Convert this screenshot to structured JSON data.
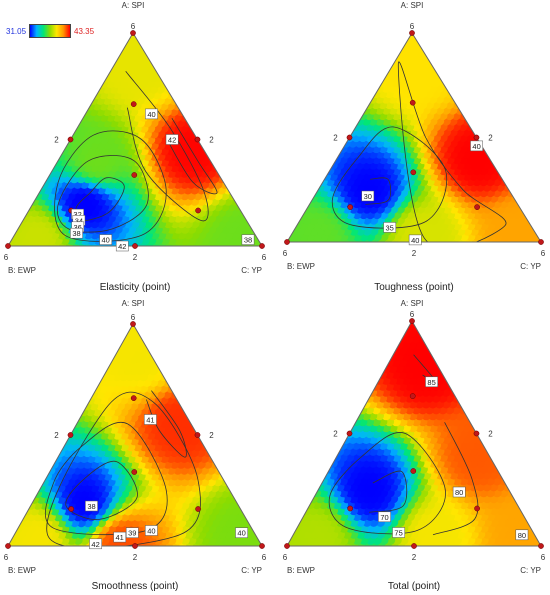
{
  "legend": {
    "min": "31.05",
    "max": "43.35"
  },
  "vertex_labels": {
    "top": "A: SPI",
    "left": "B: EWP",
    "right": "C: YP"
  },
  "tick_labels": {
    "corner": "6",
    "side": "2"
  },
  "chart_data": [
    {
      "type": "heatmap",
      "title": "Elasticity (point)",
      "components": [
        "A: SPI",
        "B: EWP",
        "C: YP"
      ],
      "range": [
        31.05,
        43.35
      ],
      "hotspots": [
        {
          "a": 0.2,
          "b": 0.6,
          "c": 0.2,
          "v": 31
        },
        {
          "a": 0.45,
          "b": 0.05,
          "c": 0.5,
          "v": 43.3
        },
        {
          "a": 0.85,
          "b": 0.05,
          "c": 0.1,
          "v": 39
        },
        {
          "a": 0.05,
          "b": 0.05,
          "c": 0.9,
          "v": 37
        },
        {
          "a": 0.05,
          "b": 0.85,
          "c": 0.1,
          "v": 38.5
        },
        {
          "a": 0.4,
          "b": 0.45,
          "c": 0.15,
          "v": 37
        }
      ],
      "contour_labels": [
        "40",
        "42",
        "32",
        "34",
        "36",
        "38",
        "40",
        "42",
        "38"
      ],
      "design_points": [
        {
          "a": 1,
          "b": 0,
          "c": 0
        },
        {
          "a": 0,
          "b": 1,
          "c": 0
        },
        {
          "a": 0,
          "b": 0,
          "c": 1
        },
        {
          "a": 0.5,
          "b": 0.5,
          "c": 0
        },
        {
          "a": 0.5,
          "b": 0,
          "c": 0.5
        },
        {
          "a": 0,
          "b": 0.5,
          "c": 0.5
        },
        {
          "a": 0.333,
          "b": 0.333,
          "c": 0.333
        },
        {
          "a": 0.667,
          "b": 0.167,
          "c": 0.167
        },
        {
          "a": 0.167,
          "b": 0.667,
          "c": 0.167
        },
        {
          "a": 0.167,
          "b": 0.167,
          "c": 0.667
        }
      ]
    },
    {
      "type": "heatmap",
      "title": "Toughness (point)",
      "components": [
        "A: SPI",
        "B: EWP",
        "C: YP"
      ],
      "range": [
        29,
        45
      ],
      "hotspots": [
        {
          "a": 0.25,
          "b": 0.55,
          "c": 0.2,
          "v": 29
        },
        {
          "a": 0.4,
          "b": 0.05,
          "c": 0.55,
          "v": 45
        },
        {
          "a": 0.85,
          "b": 0.05,
          "c": 0.1,
          "v": 40
        },
        {
          "a": 0.05,
          "b": 0.05,
          "c": 0.9,
          "v": 42
        },
        {
          "a": 0.05,
          "b": 0.85,
          "c": 0.1,
          "v": 36.5
        },
        {
          "a": 0.05,
          "b": 0.45,
          "c": 0.5,
          "v": 39
        }
      ],
      "contour_labels": [
        "30",
        "35",
        "40",
        "40"
      ],
      "design_points": [
        {
          "a": 1,
          "b": 0,
          "c": 0
        },
        {
          "a": 0,
          "b": 1,
          "c": 0
        },
        {
          "a": 0,
          "b": 0,
          "c": 1
        },
        {
          "a": 0.5,
          "b": 0.5,
          "c": 0
        },
        {
          "a": 0.5,
          "b": 0,
          "c": 0.5
        },
        {
          "a": 0,
          "b": 0.5,
          "c": 0.5
        },
        {
          "a": 0.333,
          "b": 0.333,
          "c": 0.333
        },
        {
          "a": 0.667,
          "b": 0.167,
          "c": 0.167
        },
        {
          "a": 0.167,
          "b": 0.667,
          "c": 0.167
        },
        {
          "a": 0.167,
          "b": 0.167,
          "c": 0.667
        }
      ]
    },
    {
      "type": "heatmap",
      "title": "Smoothness (point)",
      "components": [
        "A: SPI",
        "B: EWP",
        "C: YP"
      ],
      "range": [
        37,
        43
      ],
      "hotspots": [
        {
          "a": 0.2,
          "b": 0.6,
          "c": 0.2,
          "v": 37
        },
        {
          "a": 0.55,
          "b": 0.05,
          "c": 0.4,
          "v": 42.7
        },
        {
          "a": 0.85,
          "b": 0.05,
          "c": 0.1,
          "v": 41
        },
        {
          "a": 0.02,
          "b": 0.55,
          "c": 0.43,
          "v": 42.5
        },
        {
          "a": 0.05,
          "b": 0.05,
          "c": 0.9,
          "v": 40
        },
        {
          "a": 0.05,
          "b": 0.85,
          "c": 0.1,
          "v": 41
        }
      ],
      "contour_labels": [
        "41",
        "38",
        "39",
        "40",
        "41",
        "42",
        "40"
      ],
      "design_points": [
        {
          "a": 1,
          "b": 0,
          "c": 0
        },
        {
          "a": 0,
          "b": 1,
          "c": 0
        },
        {
          "a": 0,
          "b": 0,
          "c": 1
        },
        {
          "a": 0.5,
          "b": 0.5,
          "c": 0
        },
        {
          "a": 0.5,
          "b": 0,
          "c": 0.5
        },
        {
          "a": 0,
          "b": 0.5,
          "c": 0.5
        },
        {
          "a": 0.333,
          "b": 0.333,
          "c": 0.333
        },
        {
          "a": 0.667,
          "b": 0.167,
          "c": 0.167
        },
        {
          "a": 0.167,
          "b": 0.667,
          "c": 0.167
        },
        {
          "a": 0.167,
          "b": 0.167,
          "c": 0.667
        }
      ]
    },
    {
      "type": "heatmap",
      "title": "Total (point)",
      "components": [
        "A: SPI",
        "B: EWP",
        "C: YP"
      ],
      "range": [
        67,
        88
      ],
      "hotspots": [
        {
          "a": 0.25,
          "b": 0.55,
          "c": 0.2,
          "v": 67
        },
        {
          "a": 0.8,
          "b": 0.05,
          "c": 0.15,
          "v": 88
        },
        {
          "a": 0.4,
          "b": 0.05,
          "c": 0.55,
          "v": 86
        },
        {
          "a": 0.05,
          "b": 0.05,
          "c": 0.9,
          "v": 84
        },
        {
          "a": 0.05,
          "b": 0.85,
          "c": 0.1,
          "v": 79
        },
        {
          "a": 0.05,
          "b": 0.4,
          "c": 0.55,
          "v": 81
        }
      ],
      "contour_labels": [
        "85",
        "80",
        "70",
        "75",
        "80"
      ],
      "design_points": [
        {
          "a": 1,
          "b": 0,
          "c": 0
        },
        {
          "a": 0,
          "b": 1,
          "c": 0
        },
        {
          "a": 0,
          "b": 0,
          "c": 1
        },
        {
          "a": 0.5,
          "b": 0.5,
          "c": 0
        },
        {
          "a": 0.5,
          "b": 0,
          "c": 0.5
        },
        {
          "a": 0,
          "b": 0.5,
          "c": 0.5
        },
        {
          "a": 0.333,
          "b": 0.333,
          "c": 0.333
        },
        {
          "a": 0.667,
          "b": 0.167,
          "c": 0.167
        },
        {
          "a": 0.167,
          "b": 0.667,
          "c": 0.167
        },
        {
          "a": 0.167,
          "b": 0.167,
          "c": 0.667
        }
      ]
    }
  ]
}
